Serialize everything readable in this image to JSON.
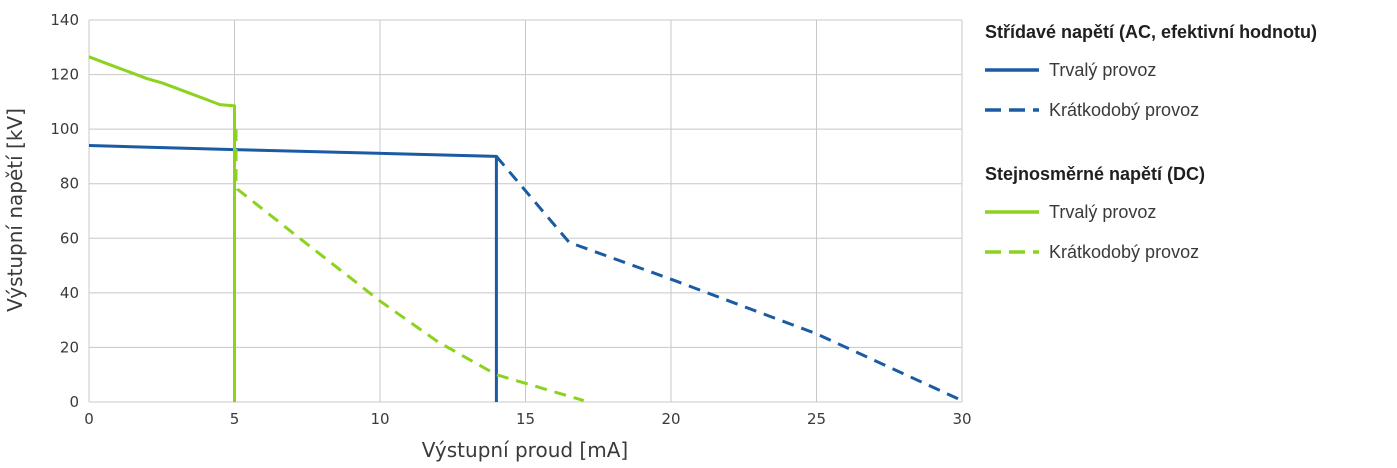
{
  "chart_data": {
    "type": "line",
    "xlabel": "Výstupní proud [mA]",
    "ylabel": "Výstupní napětí [kV]",
    "xlim": [
      0,
      30
    ],
    "ylim": [
      0,
      140
    ],
    "xticks": [
      0,
      5,
      10,
      15,
      20,
      25,
      30
    ],
    "yticks": [
      0,
      20,
      40,
      60,
      80,
      100,
      120,
      140
    ],
    "grid": true,
    "legend_position": "right",
    "groups": [
      {
        "title": "Střídavé napětí (AC, efektivní hodnotu)"
      },
      {
        "title": "Stejnosměrné napětí (DC)"
      }
    ],
    "series": [
      {
        "group": 0,
        "name": "Trvalý provoz",
        "color": "#1a5ba4",
        "dash": "solid",
        "x": [
          0,
          5,
          14,
          14
        ],
        "y": [
          94,
          92.5,
          90,
          0
        ]
      },
      {
        "group": 0,
        "name": "Krátkodobý provoz",
        "color": "#1a5ba4",
        "dash": "dashed",
        "x": [
          14,
          16.5,
          20,
          25,
          30
        ],
        "y": [
          90,
          58.5,
          45,
          25,
          0.5
        ]
      },
      {
        "group": 1,
        "name": "Trvalý provoz",
        "color": "#8cd21e",
        "dash": "solid",
        "x": [
          0,
          0.5,
          1,
          1.5,
          2,
          2.5,
          3,
          3.5,
          4,
          4.5,
          5,
          5,
          5
        ],
        "y": [
          126.5,
          124.5,
          122.5,
          120.5,
          118.5,
          117,
          115,
          113,
          111,
          109,
          108.5,
          108.5,
          0
        ]
      },
      {
        "group": 1,
        "name": "Krátkodobý provoz",
        "color": "#8cd21e",
        "dash": "dashed",
        "x": [
          5.05,
          5.05,
          5.1,
          7,
          10,
          12,
          14,
          17
        ],
        "y": [
          100,
          80,
          78,
          62,
          37,
          22,
          10,
          0.5
        ]
      }
    ]
  }
}
